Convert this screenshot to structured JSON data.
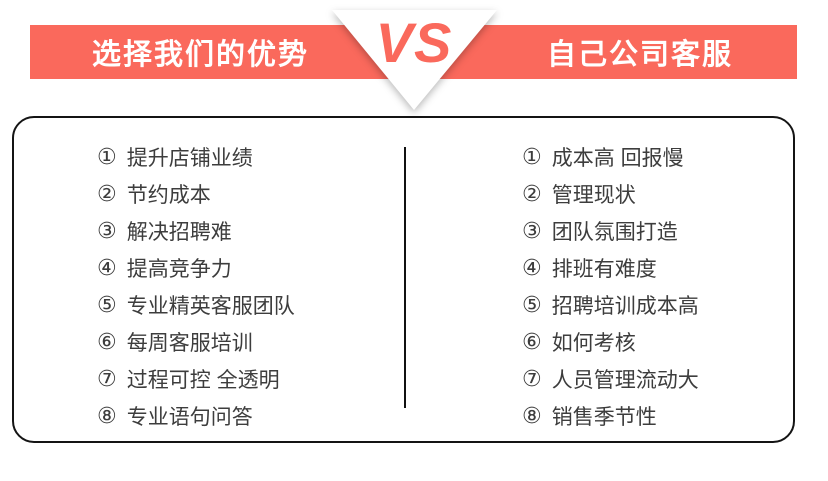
{
  "header": {
    "left_title": "选择我们的优势",
    "right_title": "自己公司客服",
    "vs_label": "VS"
  },
  "colors": {
    "accent": "#fa695c",
    "band_text": "#ffffff",
    "list_text": "#3d3d3d",
    "card_border": "#141414"
  },
  "comparison": {
    "left_items": [
      {
        "num": "①",
        "text": "提升店铺业绩"
      },
      {
        "num": "②",
        "text": "节约成本"
      },
      {
        "num": "③",
        "text": "解决招聘难"
      },
      {
        "num": "④",
        "text": "提高竞争力"
      },
      {
        "num": "⑤",
        "text": "专业精英客服团队"
      },
      {
        "num": "⑥",
        "text": "每周客服培训"
      },
      {
        "num": "⑦",
        "text": "过程可控 全透明"
      },
      {
        "num": "⑧",
        "text": "专业语句问答"
      }
    ],
    "right_items": [
      {
        "num": "①",
        "text": "成本高 回报慢"
      },
      {
        "num": "②",
        "text": "管理现状"
      },
      {
        "num": "③",
        "text": "团队氛围打造"
      },
      {
        "num": "④",
        "text": "排班有难度"
      },
      {
        "num": "⑤",
        "text": "招聘培训成本高"
      },
      {
        "num": "⑥",
        "text": "如何考核"
      },
      {
        "num": "⑦",
        "text": "人员管理流动大"
      },
      {
        "num": "⑧",
        "text": "销售季节性"
      }
    ]
  }
}
